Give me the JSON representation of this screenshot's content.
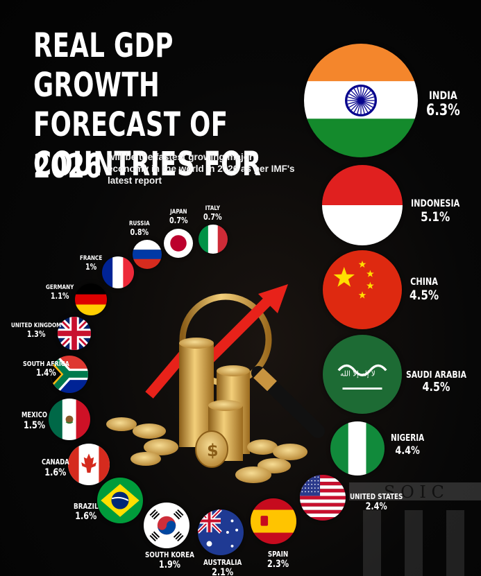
{
  "header": {
    "title": "REAL GDP GROWTH FORECAST OF COUNTRIES FOR",
    "year": "2026",
    "subtitle": "will be the fastest growing major economy in the world in 2026 as per IMF's latest report"
  },
  "chart_data": {
    "type": "table",
    "title": "REAL GDP GROWTH FORECAST OF COUNTRIES FOR 2026",
    "unit": "%",
    "series": [
      {
        "values": [
          6.3,
          5.1,
          4.5,
          4.5,
          4.4,
          2.4,
          2.3,
          2.1,
          1.9,
          1.6,
          1.6,
          1.5,
          1.4,
          1.3,
          1.1,
          1,
          0.8,
          0.7,
          0.7
        ]
      }
    ],
    "countries": [
      {
        "name": "INDIA",
        "value": "6.3%",
        "growth": 6.3,
        "flag": "india-flag"
      },
      {
        "name": "INDONESIA",
        "value": "5.1%",
        "growth": 5.1,
        "flag": "indonesia-flag"
      },
      {
        "name": "CHINA",
        "value": "4.5%",
        "growth": 4.5,
        "flag": "china-flag"
      },
      {
        "name": "SAUDI ARABIA",
        "value": "4.5%",
        "growth": 4.5,
        "flag": "saudi-arabia-flag"
      },
      {
        "name": "NIGERIA",
        "value": "4.4%",
        "growth": 4.4,
        "flag": "nigeria-flag"
      },
      {
        "name": "UNITED STATES",
        "value": "2.4%",
        "growth": 2.4,
        "flag": "united-states-flag"
      },
      {
        "name": "SPAIN",
        "value": "2.3%",
        "growth": 2.3,
        "flag": "spain-flag"
      },
      {
        "name": "AUSTRALIA",
        "value": "2.1%",
        "growth": 2.1,
        "flag": "australia-flag"
      },
      {
        "name": "SOUTH KOREA",
        "value": "1.9%",
        "growth": 1.9,
        "flag": "south-korea-flag"
      },
      {
        "name": "BRAZIL",
        "value": "1.6%",
        "growth": 1.6,
        "flag": "brazil-flag"
      },
      {
        "name": "CANADA",
        "value": "1.6%",
        "growth": 1.6,
        "flag": "canada-flag"
      },
      {
        "name": "MEXICO",
        "value": "1.5%",
        "growth": 1.5,
        "flag": "mexico-flag"
      },
      {
        "name": "SOUTH AFRICA",
        "value": "1.4%",
        "growth": 1.4,
        "flag": "south-africa-flag"
      },
      {
        "name": "UNITED KINGDOM",
        "value": "1.3%",
        "growth": 1.3,
        "flag": "united-kingdom-flag"
      },
      {
        "name": "GERMANY",
        "value": "1.1%",
        "growth": 1.1,
        "flag": "germany-flag"
      },
      {
        "name": "FRANCE",
        "value": "1%",
        "growth": 1,
        "flag": "france-flag"
      },
      {
        "name": "RUSSIA",
        "value": "0.8%",
        "growth": 0.8,
        "flag": "russia-flag"
      },
      {
        "name": "JAPAN",
        "value": "0.7%",
        "growth": 0.7,
        "flag": "japan-flag"
      },
      {
        "name": "ITALY",
        "value": "0.7%",
        "growth": 0.7,
        "flag": "italy-flag"
      }
    ]
  },
  "icons": [
    "gold-coins-icon",
    "magnifying-glass-icon",
    "red-growth-arrow-icon"
  ],
  "colors": {
    "background": "#050505",
    "text": "#ffffff",
    "arrow": "#e8221a",
    "gold": "#d8a84a"
  }
}
